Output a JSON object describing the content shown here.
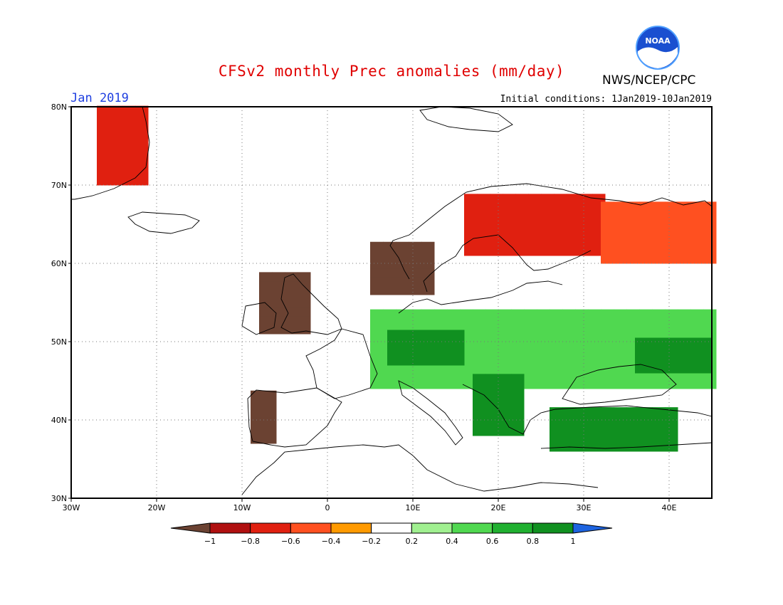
{
  "title": "CFSv2 monthly Prec anomalies (mm/day)",
  "month_label": "Jan 2019",
  "initial_conditions": "Initial conditions: 1Jan2019-10Jan2019",
  "agency": "NWS/NCEP/CPC",
  "logo_text": "NOAA",
  "map": {
    "type": "heatmap",
    "lon_range": [
      -30,
      45
    ],
    "lat_range": [
      30,
      80
    ],
    "x_ticks": [
      "30W",
      "20W",
      "10W",
      "0",
      "10E",
      "20E",
      "30E",
      "40E"
    ],
    "y_ticks": [
      "80N",
      "70N",
      "60N",
      "50N",
      "40N",
      "30N"
    ],
    "colorbar": {
      "labels": [
        "-1",
        "-0.8",
        "-0.6",
        "-0.4",
        "-0.2",
        "0.2",
        "0.4",
        "0.6",
        "0.8",
        "1"
      ],
      "colors": [
        "#6b4232",
        "#b01010",
        "#e02010",
        "#ff5020",
        "#ff9a00",
        "#ffffff",
        "#a0f090",
        "#50d850",
        "#20b030",
        "#109020",
        "#1e64e0"
      ]
    }
  },
  "chart_data": {
    "type": "heatmap",
    "xlabel": "",
    "ylabel": "",
    "title": "CFSv2 monthly Prec anomalies (mm/day)",
    "x_ticks": [
      "30W",
      "20W",
      "10W",
      "0",
      "10E",
      "20E",
      "30E",
      "40E"
    ],
    "y_ticks": [
      "80N",
      "70N",
      "60N",
      "50N",
      "40N",
      "30N"
    ],
    "regions": [
      {
        "name": "",
        "lon": [
          -27,
          -22
        ],
        "lat": [
          70,
          80
        ],
        "level": -0.6
      },
      {
        "name": "",
        "lon": [
          -8,
          -2
        ],
        "lat": [
          51,
          58
        ],
        "level": -1
      },
      {
        "name": "",
        "lon": [
          5,
          12
        ],
        "lat": [
          56,
          62
        ],
        "level": -1
      },
      {
        "name": "",
        "lon": [
          16,
          32
        ],
        "lat": [
          61,
          68
        ],
        "level": -0.6
      },
      {
        "name": "",
        "lon": [
          32,
          45
        ],
        "lat": [
          60,
          67
        ],
        "level": -0.4
      },
      {
        "name": "",
        "lon": [
          -9,
          -6
        ],
        "lat": [
          37,
          43
        ],
        "level": -1
      },
      {
        "name": "",
        "lon": [
          5,
          45
        ],
        "lat": [
          44,
          54
        ],
        "level": 0.6
      },
      {
        "name": "",
        "lon": [
          7,
          16
        ],
        "lat": [
          47,
          51
        ],
        "level": 1
      },
      {
        "name": "",
        "lon": [
          17,
          22
        ],
        "lat": [
          38,
          45
        ],
        "level": 1
      },
      {
        "name": "",
        "lon": [
          26,
          40
        ],
        "lat": [
          36,
          41
        ],
        "level": 1
      },
      {
        "name": "",
        "lon": [
          36,
          44
        ],
        "lat": [
          46,
          50
        ],
        "level": 1
      }
    ]
  }
}
